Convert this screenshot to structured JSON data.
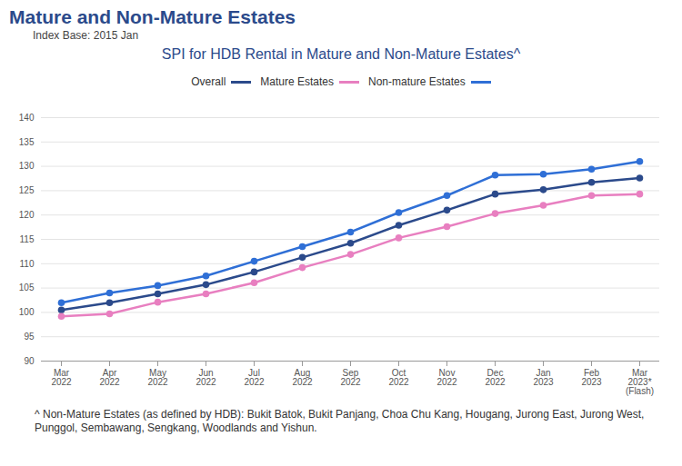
{
  "heading": "Mature and Non-Mature Estates",
  "chart_data": {
    "type": "line",
    "subtitle": "Index Base: 2015 Jan",
    "title": "SPI for HDB Rental in Mature and Non-Mature Estates^",
    "x": [
      "Mar\n2022",
      "Apr\n2022",
      "May\n2022",
      "Jun\n2022",
      "Jul\n2022",
      "Aug\n2022",
      "Sep\n2022",
      "Oct\n2022",
      "Nov\n2022",
      "Dec\n2022",
      "Jan\n2023",
      "Feb\n2023",
      "Mar\n2023*\n(Flash)"
    ],
    "series": [
      {
        "name": "Overall",
        "color": "#2b4a8b",
        "marker": "circle",
        "values": [
          100.5,
          102,
          103.8,
          105.7,
          108.3,
          111.3,
          114.2,
          117.9,
          121,
          124.3,
          125.2,
          126.7,
          127.6
        ]
      },
      {
        "name": "Mature Estates",
        "color": "#e87fc0",
        "marker": "circle",
        "values": [
          99.2,
          99.7,
          102.1,
          103.8,
          106.1,
          109.2,
          111.9,
          115.3,
          117.6,
          120.3,
          122,
          124,
          124.3
        ]
      },
      {
        "name": "Non-mature Estates",
        "color": "#2f6fd6",
        "marker": "circle",
        "values": [
          102,
          104,
          105.5,
          107.5,
          110.5,
          113.5,
          116.5,
          120.5,
          124,
          128.2,
          128.4,
          129.4,
          131
        ]
      }
    ],
    "ylim": [
      90,
      140
    ],
    "yticks": [
      90,
      95,
      100,
      105,
      110,
      115,
      120,
      125,
      130,
      135,
      140
    ],
    "grid": true,
    "legend": "top",
    "caption": "^ Non-Mature Estates (as defined by HDB): Bukit Batok, Bukit Panjang, Choa Chu Kang, Hougang, Jurong East, Jurong West, Punggol, Sembawang, Sengkang, Woodlands and Yishun."
  }
}
